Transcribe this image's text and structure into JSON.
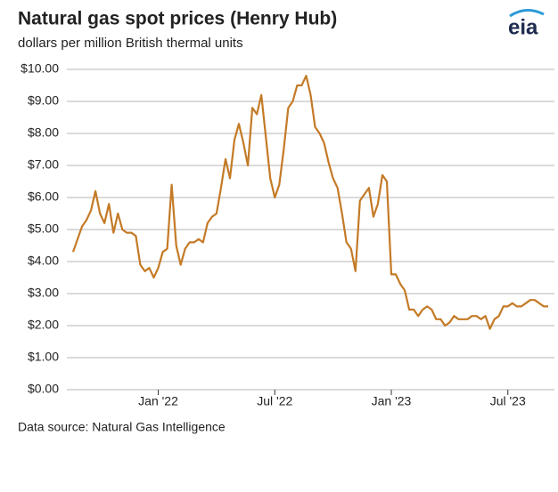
{
  "logo": "eia",
  "source": "Data source: Natural Gas Intelligence",
  "chart_data": {
    "type": "line",
    "title": "Natural gas spot prices (Henry Hub)",
    "subtitle": "dollars per million British thermal units",
    "color": "#c47a26",
    "grid": true,
    "categories": [
      null,
      null,
      null,
      null,
      null,
      null,
      null,
      null,
      null,
      null,
      null,
      null,
      null,
      null,
      null,
      null,
      null,
      null,
      null,
      "Jan '22",
      null,
      null,
      null,
      null,
      null,
      null,
      null,
      null,
      null,
      null,
      null,
      null,
      null,
      null,
      null,
      null,
      null,
      null,
      null,
      null,
      null,
      null,
      null,
      null,
      null,
      "Jul '22",
      null,
      null,
      null,
      null,
      null,
      null,
      null,
      null,
      null,
      null,
      null,
      null,
      null,
      null,
      null,
      null,
      null,
      null,
      null,
      null,
      null,
      null,
      null,
      null,
      null,
      "Jan '23",
      null,
      null,
      null,
      null,
      null,
      null,
      null,
      null,
      null,
      null,
      null,
      null,
      null,
      null,
      null,
      null,
      null,
      null,
      null,
      null,
      null,
      null,
      null,
      null,
      null,
      "Jul '23",
      null,
      null,
      null,
      null,
      null,
      null,
      null,
      null,
      null
    ],
    "values": [
      4.3,
      4.7,
      5.1,
      5.3,
      5.6,
      6.2,
      5.5,
      5.2,
      5.8,
      4.9,
      5.5,
      5.0,
      4.9,
      4.9,
      4.8,
      3.9,
      3.7,
      3.8,
      3.5,
      3.8,
      4.3,
      4.4,
      6.4,
      4.5,
      3.9,
      4.4,
      4.6,
      4.6,
      4.7,
      4.6,
      5.2,
      5.4,
      5.5,
      6.3,
      7.2,
      6.6,
      7.8,
      8.3,
      7.7,
      7.0,
      8.8,
      8.6,
      9.2,
      7.9,
      6.6,
      6.0,
      6.4,
      7.5,
      8.8,
      9.0,
      9.5,
      9.5,
      9.8,
      9.2,
      8.2,
      8.0,
      7.7,
      7.1,
      6.6,
      6.3,
      5.5,
      4.6,
      4.4,
      3.7,
      5.9,
      6.1,
      6.3,
      5.4,
      5.8,
      6.7,
      6.5,
      3.6,
      3.6,
      3.3,
      3.1,
      2.5,
      2.5,
      2.3,
      2.5,
      2.6,
      2.5,
      2.2,
      2.2,
      2.0,
      2.1,
      2.3,
      2.2,
      2.2,
      2.2,
      2.3,
      2.3,
      2.2,
      2.3,
      1.9,
      2.2,
      2.3,
      2.6,
      2.6,
      2.7,
      2.6,
      2.6,
      2.7,
      2.8,
      2.8,
      2.7,
      2.6,
      2.6
    ],
    "ylim": [
      0,
      10
    ],
    "yticks": [
      {
        "value": 0,
        "label": "$0.00"
      },
      {
        "value": 1,
        "label": "$1.00"
      },
      {
        "value": 2,
        "label": "$2.00"
      },
      {
        "value": 3,
        "label": "$3.00"
      },
      {
        "value": 4,
        "label": "$4.00"
      },
      {
        "value": 5,
        "label": "$5.00"
      },
      {
        "value": 6,
        "label": "$6.00"
      },
      {
        "value": 7,
        "label": "$7.00"
      },
      {
        "value": 8,
        "label": "$8.00"
      },
      {
        "value": 9,
        "label": "$9.00"
      },
      {
        "value": 10,
        "label": "$10.00"
      }
    ]
  }
}
